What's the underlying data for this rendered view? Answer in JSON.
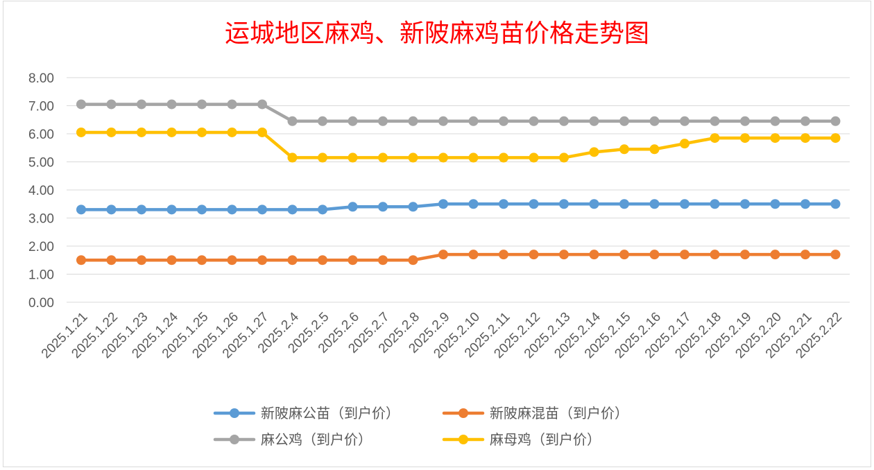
{
  "chart_data": {
    "type": "line",
    "title": "运城地区麻鸡、新陂麻鸡苗价格走势图",
    "xlabel": "",
    "ylabel": "",
    "ylim": [
      0,
      8
    ],
    "yticks": [
      "0.00",
      "1.00",
      "2.00",
      "3.00",
      "4.00",
      "5.00",
      "6.00",
      "7.00",
      "8.00"
    ],
    "grid": true,
    "legend_position": "bottom",
    "categories": [
      "2025.1.21",
      "2025.1.22",
      "2025.1.23",
      "2025.1.24",
      "2025.1.25",
      "2025.1.26",
      "2025.1.27",
      "2025.2.4",
      "2025.2.5",
      "2025.2.6",
      "2025.2.7",
      "2025.2.8",
      "2025.2.9",
      "2025.2.10",
      "2025.2.11",
      "2025.2.12",
      "2025.2.13",
      "2025.2.14",
      "2025.2.15",
      "2025.2.16",
      "2025.2.17",
      "2025.2.18",
      "2025.2.19",
      "2025.2.20",
      "2025.2.21",
      "2025.2.22"
    ],
    "series": [
      {
        "name": "新陂麻公苗（到户价）",
        "color": "#5b9bd5",
        "values": [
          3.3,
          3.3,
          3.3,
          3.3,
          3.3,
          3.3,
          3.3,
          3.3,
          3.3,
          3.4,
          3.4,
          3.4,
          3.5,
          3.5,
          3.5,
          3.5,
          3.5,
          3.5,
          3.5,
          3.5,
          3.5,
          3.5,
          3.5,
          3.5,
          3.5,
          3.5
        ]
      },
      {
        "name": "新陂麻混苗（到户价）",
        "color": "#ed7d31",
        "values": [
          1.5,
          1.5,
          1.5,
          1.5,
          1.5,
          1.5,
          1.5,
          1.5,
          1.5,
          1.5,
          1.5,
          1.5,
          1.7,
          1.7,
          1.7,
          1.7,
          1.7,
          1.7,
          1.7,
          1.7,
          1.7,
          1.7,
          1.7,
          1.7,
          1.7,
          1.7
        ]
      },
      {
        "name": "麻公鸡（到户价）",
        "color": "#a5a5a5",
        "values": [
          7.05,
          7.05,
          7.05,
          7.05,
          7.05,
          7.05,
          7.05,
          6.45,
          6.45,
          6.45,
          6.45,
          6.45,
          6.45,
          6.45,
          6.45,
          6.45,
          6.45,
          6.45,
          6.45,
          6.45,
          6.45,
          6.45,
          6.45,
          6.45,
          6.45,
          6.45
        ]
      },
      {
        "name": "麻母鸡（到户价）",
        "color": "#ffc000",
        "values": [
          6.05,
          6.05,
          6.05,
          6.05,
          6.05,
          6.05,
          6.05,
          5.15,
          5.15,
          5.15,
          5.15,
          5.15,
          5.15,
          5.15,
          5.15,
          5.15,
          5.15,
          5.35,
          5.45,
          5.45,
          5.65,
          5.85,
          5.85,
          5.85,
          5.85,
          5.85
        ]
      }
    ]
  },
  "colors": {
    "title": "#ff0000",
    "grid": "#d9d9d9",
    "text": "#595959",
    "border": "#d9d9d9"
  }
}
